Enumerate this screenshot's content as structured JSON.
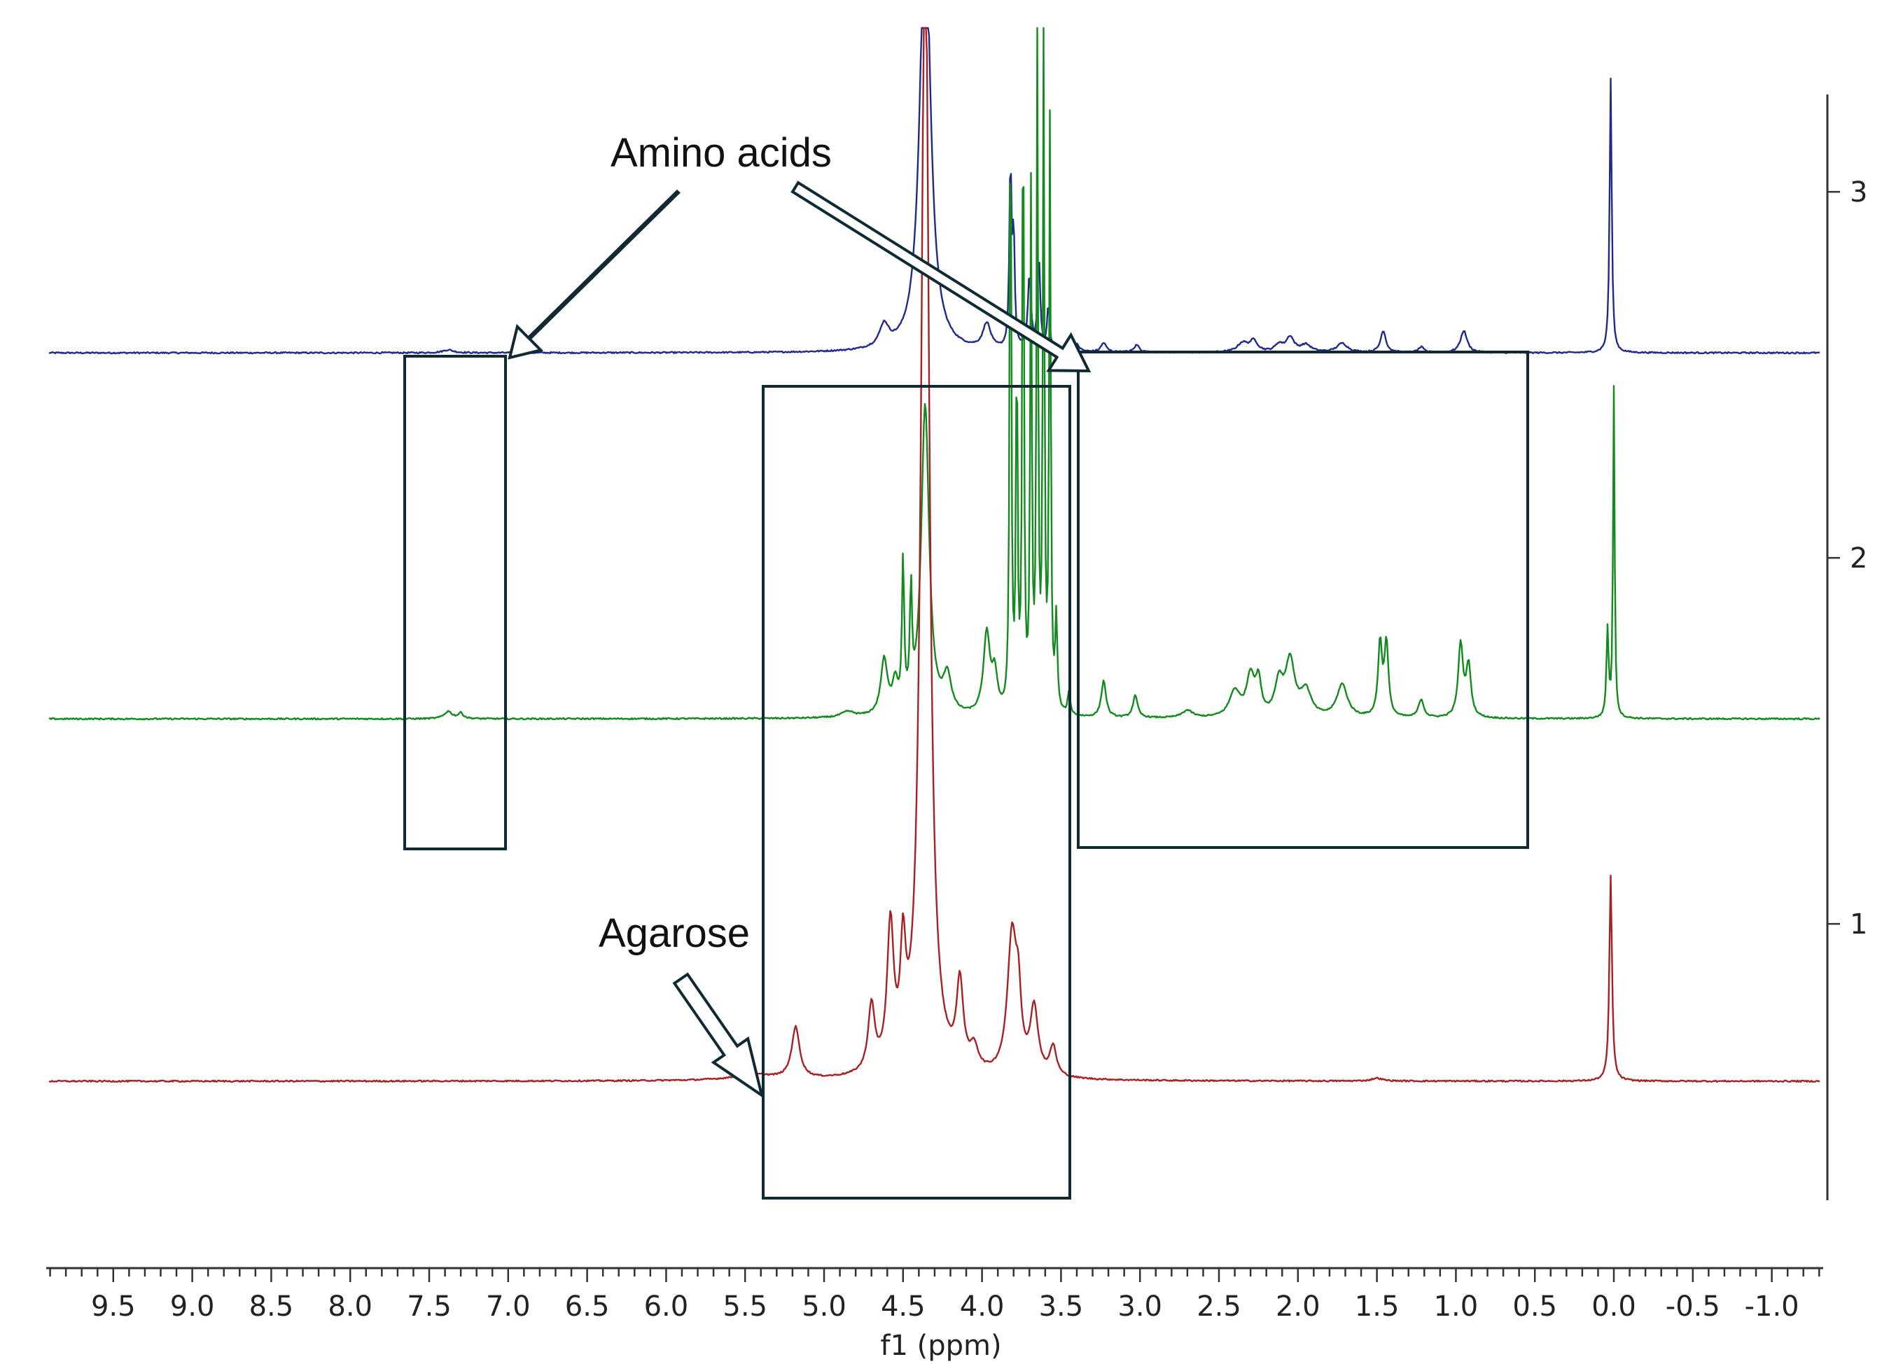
{
  "chart_data": {
    "type": "line",
    "title": "",
    "xlabel": "f1 (ppm)",
    "ylabel": "",
    "x_reversed": true,
    "xlim": [
      10.0,
      -1.3
    ],
    "x_ticks": [
      "9.5",
      "9.0",
      "8.5",
      "8.0",
      "7.5",
      "7.0",
      "6.5",
      "6.0",
      "5.5",
      "5.0",
      "4.5",
      "4.0",
      "3.5",
      "3.0",
      "2.5",
      "2.0",
      "1.5",
      "1.0",
      "0.5",
      "0.0",
      "-0.5",
      "-1.0"
    ],
    "ylim": [
      0.55,
      3.5
    ],
    "y_ticks": [
      "1",
      "2",
      "3"
    ],
    "grid": false,
    "legend": "none",
    "series": [
      {
        "color": "#1f2a8c",
        "baseline": 2.56,
        "peaks": [
          {
            "x": 4.62,
            "h": 0.06,
            "w": 0.035
          },
          {
            "x": 4.36,
            "h": 1.2,
            "w": 0.04
          },
          {
            "x": 3.97,
            "h": 0.07,
            "w": 0.03
          },
          {
            "x": 3.82,
            "h": 0.5,
            "w": 0.008
          },
          {
            "x": 3.8,
            "h": 0.3,
            "w": 0.008
          },
          {
            "x": 3.7,
            "h": 0.2,
            "w": 0.012
          },
          {
            "x": 3.64,
            "h": 0.25,
            "w": 0.01
          },
          {
            "x": 3.58,
            "h": 0.12,
            "w": 0.01
          },
          {
            "x": 3.4,
            "h": 0.02,
            "w": 0.02
          },
          {
            "x": 3.23,
            "h": 0.025,
            "w": 0.02
          },
          {
            "x": 3.02,
            "h": 0.02,
            "w": 0.02
          },
          {
            "x": 2.35,
            "h": 0.025,
            "w": 0.04
          },
          {
            "x": 2.28,
            "h": 0.03,
            "w": 0.03
          },
          {
            "x": 2.12,
            "h": 0.02,
            "w": 0.03
          },
          {
            "x": 2.05,
            "h": 0.04,
            "w": 0.03
          },
          {
            "x": 1.95,
            "h": 0.02,
            "w": 0.04
          },
          {
            "x": 1.72,
            "h": 0.025,
            "w": 0.04
          },
          {
            "x": 1.46,
            "h": 0.06,
            "w": 0.02
          },
          {
            "x": 1.22,
            "h": 0.015,
            "w": 0.02
          },
          {
            "x": 0.95,
            "h": 0.06,
            "w": 0.025
          },
          {
            "x": 0.02,
            "h": 0.75,
            "w": 0.008
          },
          {
            "x": 7.38,
            "h": 0.008,
            "w": 0.04
          }
        ]
      },
      {
        "color": "#138a1e",
        "baseline": 1.56,
        "peaks": [
          {
            "x": 7.38,
            "h": 0.02,
            "w": 0.03
          },
          {
            "x": 7.3,
            "h": 0.015,
            "w": 0.02
          },
          {
            "x": 4.85,
            "h": 0.015,
            "w": 0.05
          },
          {
            "x": 4.62,
            "h": 0.15,
            "w": 0.025
          },
          {
            "x": 4.55,
            "h": 0.08,
            "w": 0.02
          },
          {
            "x": 4.5,
            "h": 0.4,
            "w": 0.008
          },
          {
            "x": 4.45,
            "h": 0.3,
            "w": 0.008
          },
          {
            "x": 4.36,
            "h": 0.85,
            "w": 0.03
          },
          {
            "x": 4.22,
            "h": 0.1,
            "w": 0.03
          },
          {
            "x": 3.97,
            "h": 0.22,
            "w": 0.025
          },
          {
            "x": 3.92,
            "h": 0.1,
            "w": 0.02
          },
          {
            "x": 3.82,
            "h": 1.8,
            "w": 0.006
          },
          {
            "x": 3.78,
            "h": 1.0,
            "w": 0.006
          },
          {
            "x": 3.74,
            "h": 1.8,
            "w": 0.006
          },
          {
            "x": 3.69,
            "h": 1.4,
            "w": 0.006
          },
          {
            "x": 3.65,
            "h": 1.8,
            "w": 0.006
          },
          {
            "x": 3.61,
            "h": 1.8,
            "w": 0.006
          },
          {
            "x": 3.57,
            "h": 1.6,
            "w": 0.006
          },
          {
            "x": 3.53,
            "h": 0.25,
            "w": 0.008
          },
          {
            "x": 3.45,
            "h": 0.06,
            "w": 0.01
          },
          {
            "x": 3.23,
            "h": 0.1,
            "w": 0.018
          },
          {
            "x": 3.03,
            "h": 0.06,
            "w": 0.018
          },
          {
            "x": 2.7,
            "h": 0.02,
            "w": 0.04
          },
          {
            "x": 2.4,
            "h": 0.07,
            "w": 0.04
          },
          {
            "x": 2.3,
            "h": 0.11,
            "w": 0.03
          },
          {
            "x": 2.25,
            "h": 0.09,
            "w": 0.02
          },
          {
            "x": 2.12,
            "h": 0.09,
            "w": 0.03
          },
          {
            "x": 2.05,
            "h": 0.15,
            "w": 0.035
          },
          {
            "x": 1.95,
            "h": 0.07,
            "w": 0.04
          },
          {
            "x": 1.72,
            "h": 0.09,
            "w": 0.04
          },
          {
            "x": 1.48,
            "h": 0.2,
            "w": 0.015
          },
          {
            "x": 1.44,
            "h": 0.2,
            "w": 0.015
          },
          {
            "x": 1.22,
            "h": 0.05,
            "w": 0.02
          },
          {
            "x": 0.97,
            "h": 0.2,
            "w": 0.018
          },
          {
            "x": 0.92,
            "h": 0.14,
            "w": 0.018
          },
          {
            "x": 0.04,
            "h": 0.24,
            "w": 0.008
          },
          {
            "x": 0.0,
            "h": 0.9,
            "w": 0.006
          }
        ]
      },
      {
        "color": "#a82024",
        "baseline": 0.57,
        "peaks": [
          {
            "x": 5.45,
            "h": 0.015,
            "w": 0.15
          },
          {
            "x": 5.18,
            "h": 0.14,
            "w": 0.03
          },
          {
            "x": 4.7,
            "h": 0.18,
            "w": 0.025
          },
          {
            "x": 4.58,
            "h": 0.38,
            "w": 0.025
          },
          {
            "x": 4.5,
            "h": 0.28,
            "w": 0.02
          },
          {
            "x": 4.36,
            "h": 3.2,
            "w": 0.03
          },
          {
            "x": 4.14,
            "h": 0.23,
            "w": 0.025
          },
          {
            "x": 4.05,
            "h": 0.06,
            "w": 0.03
          },
          {
            "x": 3.81,
            "h": 0.38,
            "w": 0.035
          },
          {
            "x": 3.77,
            "h": 0.16,
            "w": 0.02
          },
          {
            "x": 3.67,
            "h": 0.18,
            "w": 0.03
          },
          {
            "x": 3.55,
            "h": 0.08,
            "w": 0.025
          },
          {
            "x": 1.5,
            "h": 0.008,
            "w": 0.04
          },
          {
            "x": 0.02,
            "h": 0.56,
            "w": 0.01
          }
        ]
      }
    ],
    "annotations": {
      "amino": "Amino acids",
      "agarose": "Agarose"
    }
  }
}
